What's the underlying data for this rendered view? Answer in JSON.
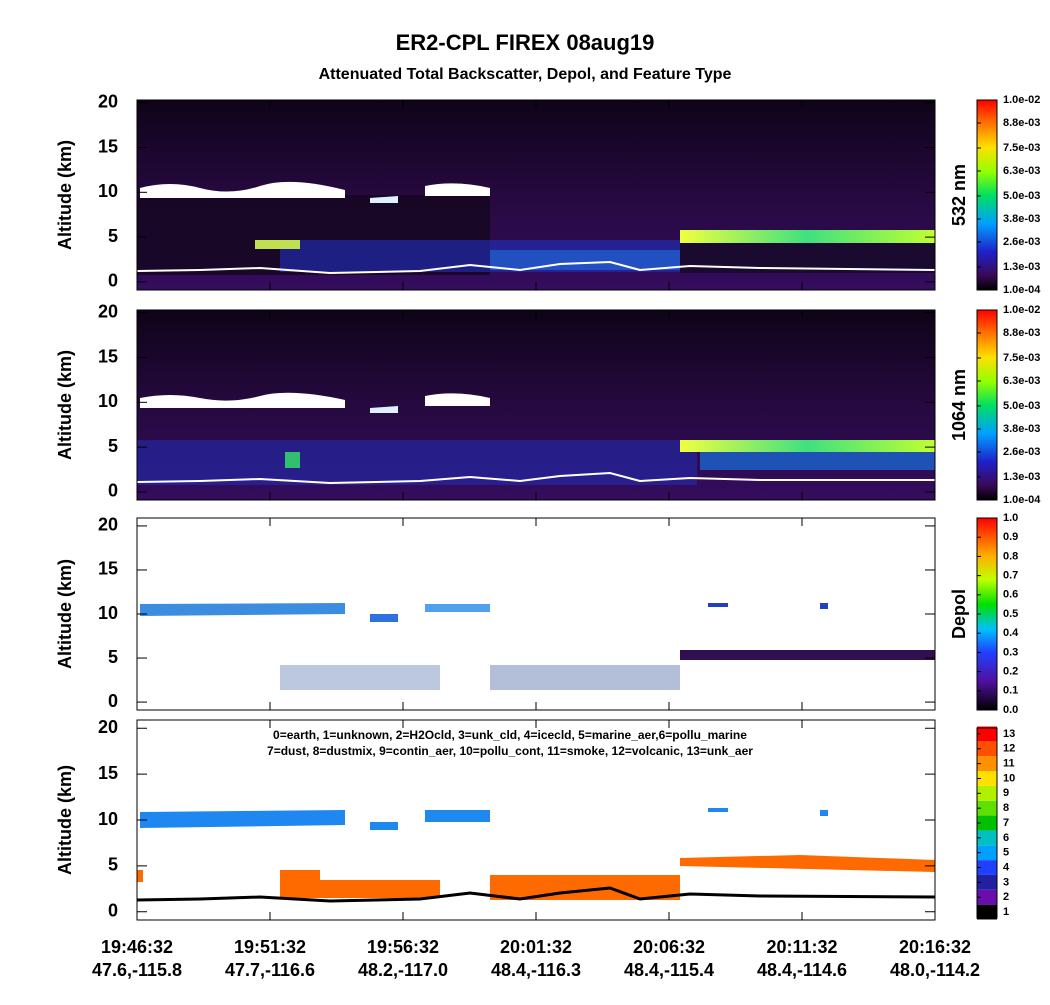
{
  "title": "ER2-CPL FIREX 08aug19",
  "subtitle": "Attenuated Total Backscatter, Depol, and Feature Type",
  "x_axis": {
    "times": [
      "19:46:32",
      "19:51:32",
      "19:56:32",
      "20:01:32",
      "20:06:32",
      "20:11:32",
      "20:16:32"
    ],
    "locations": [
      "47.6,-115.8",
      "47.7,-116.6",
      "48.2,-117.0",
      "48.4,-116.3",
      "48.4,-115.4",
      "48.4,-114.6",
      "48.0,-114.2"
    ]
  },
  "chart_data": [
    {
      "type": "heatmap",
      "ylabel": "Altitude (km)",
      "ylim": [
        -0.9,
        20.3
      ],
      "yticks": [
        0,
        5,
        10,
        15,
        20
      ],
      "colorbar_label": "532 nm",
      "clim": [
        0.0001,
        0.01
      ],
      "colorbar_ticks": [
        {
          "value": 0.0001,
          "label": "1.0e-04"
        },
        {
          "value": 0.0013,
          "label": "1.3e-03"
        },
        {
          "value": 0.0026,
          "label": "2.6e-03"
        },
        {
          "value": 0.0038,
          "label": "3.8e-03"
        },
        {
          "value": 0.005,
          "label": "5.0e-03"
        },
        {
          "value": 0.0063,
          "label": "6.3e-03"
        },
        {
          "value": 0.0075,
          "label": "7.5e-03"
        },
        {
          "value": 0.0088,
          "label": "8.8e-03"
        },
        {
          "value": 0.01,
          "label": "1.0e-02"
        }
      ]
    },
    {
      "type": "heatmap",
      "ylabel": "Altitude (km)",
      "ylim": [
        -0.9,
        20.3
      ],
      "yticks": [
        0,
        5,
        10,
        15,
        20
      ],
      "colorbar_label": "1064 nm",
      "clim": [
        0.0001,
        0.01
      ],
      "colorbar_ticks": [
        {
          "value": 0.0001,
          "label": "1.0e-04"
        },
        {
          "value": 0.0013,
          "label": "1.3e-03"
        },
        {
          "value": 0.0026,
          "label": "2.6e-03"
        },
        {
          "value": 0.0038,
          "label": "3.8e-03"
        },
        {
          "value": 0.005,
          "label": "5.0e-03"
        },
        {
          "value": 0.0063,
          "label": "6.3e-03"
        },
        {
          "value": 0.0075,
          "label": "7.5e-03"
        },
        {
          "value": 0.0088,
          "label": "8.8e-03"
        },
        {
          "value": 0.01,
          "label": "1.0e-02"
        }
      ]
    },
    {
      "type": "heatmap",
      "ylabel": "Altitude (km)",
      "ylim": [
        -0.9,
        20.9
      ],
      "yticks": [
        0,
        5,
        10,
        15,
        20
      ],
      "colorbar_label": "Depol",
      "clim": [
        0,
        1
      ],
      "colorbar_ticks": [
        {
          "value": 0,
          "label": "0.0"
        },
        0.1,
        0.2,
        0.3,
        0.4,
        0.5,
        0.6,
        0.7,
        0.8,
        0.9,
        {
          "value": 1,
          "label": "1.0"
        }
      ]
    },
    {
      "type": "heatmap",
      "ylabel": "Altitude (km)",
      "ylim": [
        -0.9,
        20.9
      ],
      "yticks": [
        0,
        5,
        10,
        15,
        20
      ],
      "annotations": [
        "0=earth, 1=unknown, 2=H2Ocld, 3=unk_cld, 4=icecld, 5=marine_aer,6=pollu_marine",
        "7=dust, 8=dustmix, 9=contin_aer, 10=pollu_cont, 11=smoke, 12=volcanic, 13=unk_aer"
      ],
      "clim": [
        0.6,
        13.4
      ],
      "colorbar_ticks": [
        1,
        2,
        3,
        4,
        5,
        6,
        7,
        8,
        9,
        10,
        11,
        12,
        13
      ]
    }
  ]
}
